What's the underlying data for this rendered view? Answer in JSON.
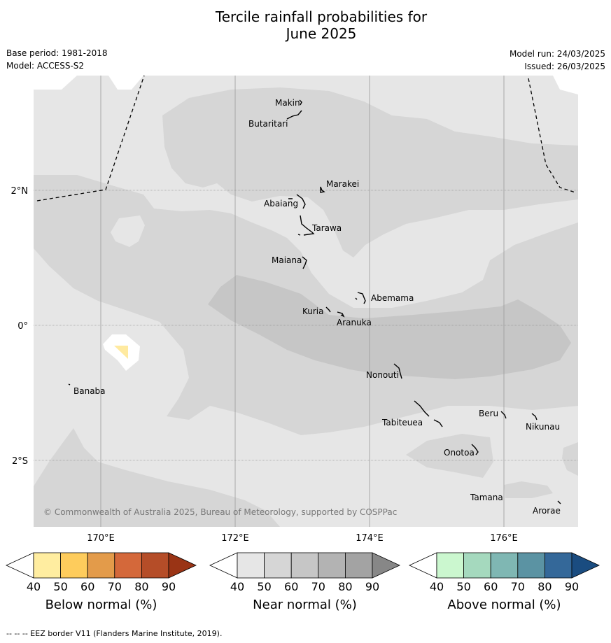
{
  "title_line1": "Tercile rainfall probabilities for",
  "title_line2": "June 2025",
  "base_period": "Base period: 1981-2018",
  "model": "Model: ACCESS-S2",
  "model_run": "Model run: 24/03/2025",
  "issued": "Issued: 26/03/2025",
  "copyright": "© Commonwealth of Australia 2025, Bureau of Meteorology, supported by COSPPac",
  "footnote": "-- -- -- EEZ border V11 (Flanders Marine Institute, 2019).",
  "lat_labels": [
    "2°N",
    "0°",
    "2°S"
  ],
  "lon_labels": [
    "170°E",
    "172°E",
    "174°E",
    "176°E"
  ],
  "places": [
    "Makin",
    "Butaritari",
    "Marakei",
    "Abaiang",
    "Tarawa",
    "Maiana",
    "Abemama",
    "Kuria",
    "Aranuka",
    "Banaba",
    "Nonouti",
    "Beru",
    "Nikunau",
    "Tabiteuea",
    "Onotoa",
    "Tamana",
    "Arorae"
  ],
  "colors": {
    "near_40": "#e6e6e6",
    "near_50": "#d6d6d6",
    "near_60": "#c6c6c6",
    "below_40": "#ffeaa0"
  },
  "legends": [
    {
      "title": "Below normal (%)",
      "ticks": [
        "40",
        "50",
        "60",
        "70",
        "80",
        "90"
      ],
      "colors": [
        "#ffeda0",
        "#fecc5c",
        "#e39b4a",
        "#d4683a",
        "#b54d28",
        "#9a3415"
      ]
    },
    {
      "title": "Near normal (%)",
      "ticks": [
        "40",
        "50",
        "60",
        "70",
        "80",
        "90"
      ],
      "colors": [
        "#e6e6e6",
        "#d6d6d6",
        "#c6c6c6",
        "#b3b3b3",
        "#a3a3a3",
        "#878787"
      ]
    },
    {
      "title": "Above normal (%)",
      "ticks": [
        "40",
        "50",
        "60",
        "70",
        "80",
        "90"
      ],
      "colors": [
        "#cbf7cf",
        "#a5d9be",
        "#7fb7b3",
        "#5b93a3",
        "#346899",
        "#1a4c80"
      ]
    }
  ]
}
